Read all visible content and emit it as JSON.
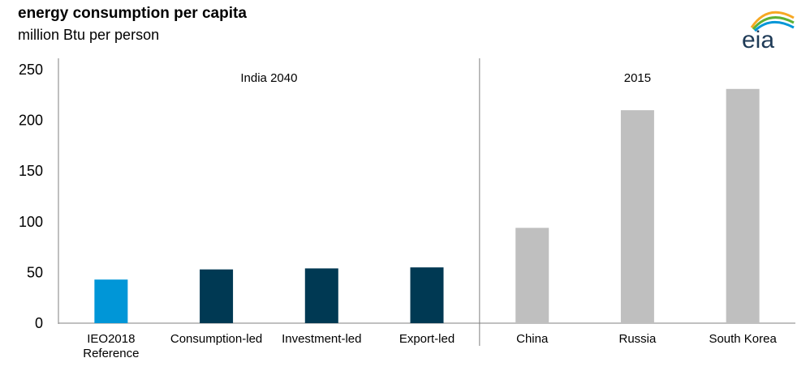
{
  "header": {
    "title": "energy consumption per capita",
    "subtitle": "million Btu per person",
    "logo_text": "eia"
  },
  "chart_data": {
    "type": "bar",
    "title": "energy consumption per capita",
    "ylabel": "million Btu per person",
    "ylim": [
      0,
      250
    ],
    "yticks": [
      0,
      50,
      100,
      150,
      200,
      250
    ],
    "grid": false,
    "groups": [
      {
        "label": "India 2040",
        "categories": [
          0,
          1,
          2,
          3
        ]
      },
      {
        "label": "2015",
        "categories": [
          4,
          5,
          6
        ]
      }
    ],
    "categories": [
      [
        "IEO2018",
        "Reference"
      ],
      [
        "Consumption-led"
      ],
      [
        "Investment-led"
      ],
      [
        "Export-led"
      ],
      [
        "China"
      ],
      [
        "Russia"
      ],
      [
        "South Korea"
      ]
    ],
    "values": [
      43,
      53,
      54,
      55,
      94,
      210,
      231
    ],
    "colors": [
      "#0096d7",
      "#003953",
      "#003953",
      "#003953",
      "#bfbfbf",
      "#bfbfbf",
      "#bfbfbf"
    ],
    "axis_color": "#808080"
  }
}
